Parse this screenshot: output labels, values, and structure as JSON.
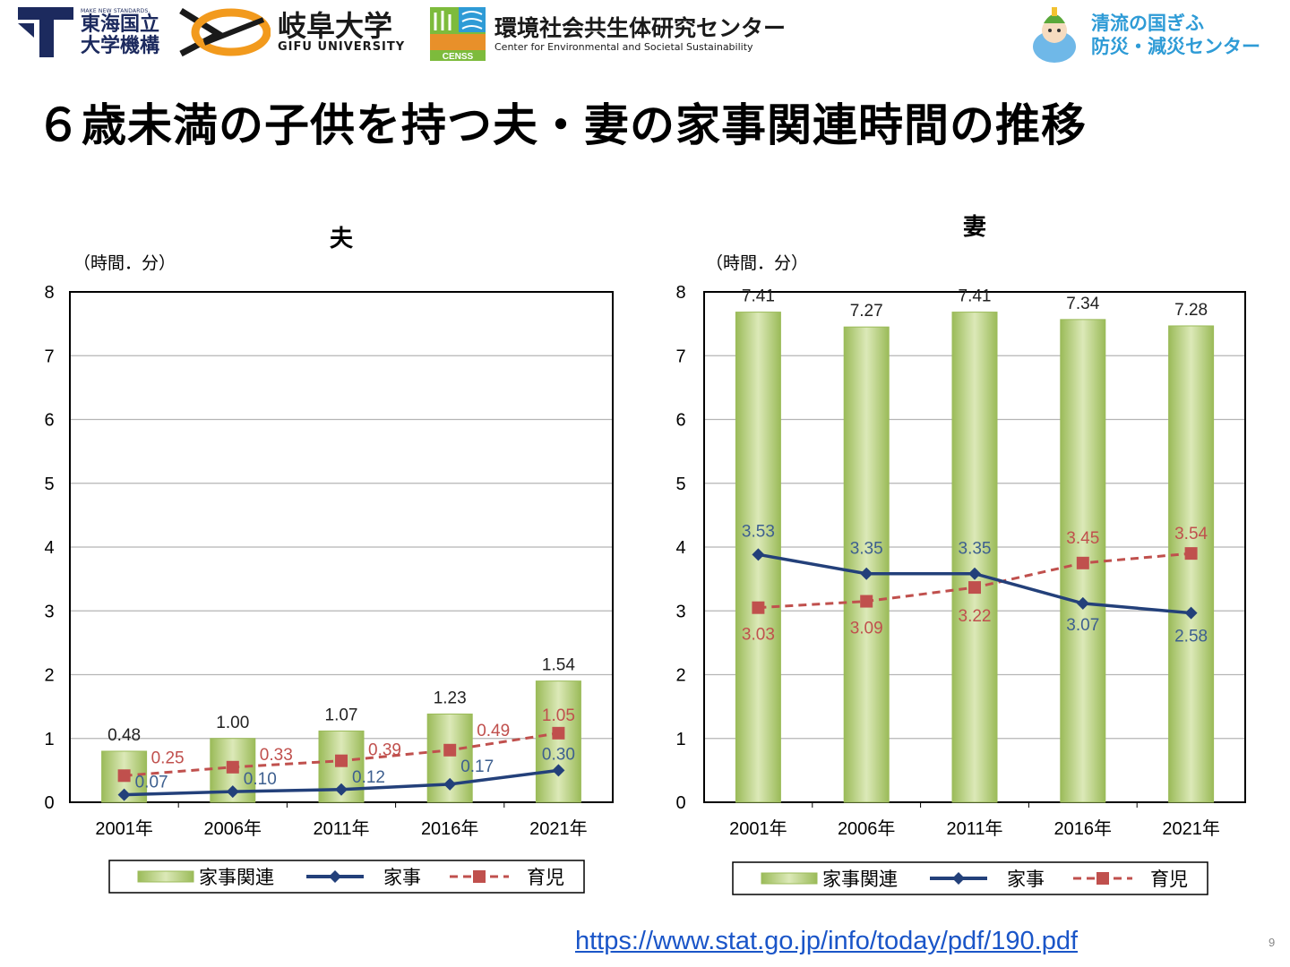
{
  "header": {
    "niu_tagline": "MAKE NEW STANDARDS.",
    "niu_name_line1": "東海国立",
    "niu_name_line2": "大学機構",
    "gifu_ja": "岐阜大学",
    "gifu_en": "GIFU UNIVERSITY",
    "censs_badge": "CENSS",
    "censs_ja": "環境社会共生体研究センター",
    "censs_en": "Center for Environmental and Societal Sustainability",
    "gikou_line1": "清流の国ぎふ",
    "gikou_line2": "防災・減災センター"
  },
  "title": "６歳未満の子供を持つ夫・妻の家事関連時間の推移",
  "source_url": "https://www.stat.go.jp/info/today/pdf/190.pdf",
  "page_number": "9",
  "colors": {
    "bar_fill_light": "#dce9b8",
    "bar_fill_dark": "#9bbb59",
    "kaji_line": "#23407a",
    "ikuji_line": "#c0504d"
  },
  "chart_data": [
    {
      "type": "bar",
      "title": "夫",
      "unit_label": "（時間．分）",
      "categories": [
        "2001年",
        "2006年",
        "2011年",
        "2016年",
        "2021年"
      ],
      "ylim": [
        0,
        8
      ],
      "yticks": [
        "0",
        "1",
        "2",
        "3",
        "4",
        "5",
        "6",
        "7",
        "8"
      ],
      "grid": true,
      "series": [
        {
          "name": "家事関連",
          "kind": "bar",
          "values": [
            0.8,
            1.0,
            1.117,
            1.383,
            1.9
          ],
          "labels": [
            "0.48",
            "1.00",
            "1.07",
            "1.23",
            "1.54"
          ]
        },
        {
          "name": "家事",
          "kind": "line",
          "values": [
            0.117,
            0.167,
            0.2,
            0.283,
            0.5
          ],
          "labels": [
            "0.07",
            "0.10",
            "0.12",
            "0.17",
            "0.30"
          ]
        },
        {
          "name": "育児",
          "kind": "dashed-line",
          "values": [
            0.417,
            0.55,
            0.65,
            0.817,
            1.083
          ],
          "labels": [
            "0.25",
            "0.33",
            "0.39",
            "0.49",
            "1.05"
          ]
        }
      ],
      "legend": [
        "家事関連",
        "家事",
        "育児"
      ],
      "legend_position": "bottom"
    },
    {
      "type": "bar",
      "title": "妻",
      "unit_label": "（時間．分）",
      "categories": [
        "2001年",
        "2006年",
        "2011年",
        "2016年",
        "2021年"
      ],
      "ylim": [
        0,
        8
      ],
      "yticks": [
        "0",
        "1",
        "2",
        "3",
        "4",
        "5",
        "6",
        "7",
        "8"
      ],
      "grid": true,
      "series": [
        {
          "name": "家事関連",
          "kind": "bar",
          "values": [
            7.683,
            7.45,
            7.683,
            7.567,
            7.467
          ],
          "labels": [
            "7.41",
            "7.27",
            "7.41",
            "7.34",
            "7.28"
          ]
        },
        {
          "name": "家事",
          "kind": "line",
          "values": [
            3.883,
            3.583,
            3.583,
            3.117,
            2.967
          ],
          "labels": [
            "3.53",
            "3.35",
            "3.35",
            "3.07",
            "2.58"
          ]
        },
        {
          "name": "育児",
          "kind": "dashed-line",
          "values": [
            3.05,
            3.15,
            3.367,
            3.75,
            3.9
          ],
          "labels": [
            "3.03",
            "3.09",
            "3.22",
            "3.45",
            "3.54"
          ]
        }
      ],
      "legend": [
        "家事関連",
        "家事",
        "育児"
      ],
      "legend_position": "bottom"
    }
  ]
}
